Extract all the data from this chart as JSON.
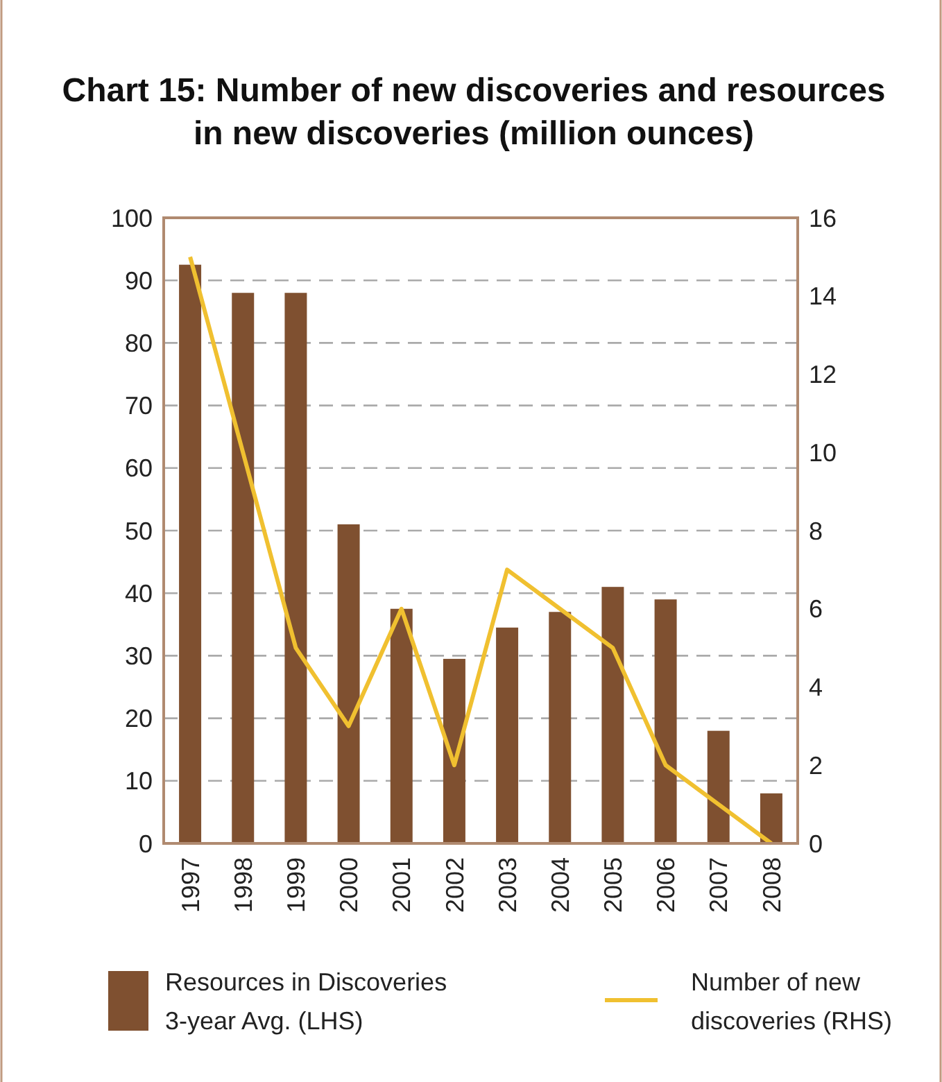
{
  "chart_data": {
    "type": "bar",
    "title": "Chart 15: Number of new discoveries and resources in new discoveries (million ounces)",
    "categories": [
      "1997",
      "1998",
      "1999",
      "2000",
      "2001",
      "2002",
      "2003",
      "2004",
      "2005",
      "2006",
      "2007",
      "2008"
    ],
    "series": [
      {
        "name": "Resources in Discoveries 3-year Avg. (LHS)",
        "color": "#7f5030",
        "values": [
          92.5,
          88,
          88,
          51,
          37.5,
          29.5,
          34.5,
          37,
          41,
          39,
          18,
          8
        ]
      },
      {
        "name": "Number of new discoveries (RHS)",
        "type": "line",
        "axis": "y2",
        "color": "#f0c030",
        "values": [
          15,
          10,
          5,
          3,
          6,
          2,
          7,
          6,
          5,
          2,
          1,
          0
        ]
      }
    ],
    "ylim": [
      0,
      100
    ],
    "yticks": [
      0,
      10,
      20,
      30,
      40,
      50,
      60,
      70,
      80,
      90,
      100
    ],
    "y2lim": [
      0,
      16
    ],
    "y2ticks": [
      0,
      2,
      4,
      6,
      8,
      10,
      12,
      14,
      16
    ],
    "grid": "y",
    "legend": "bottom",
    "marker": "none",
    "line_style": "solid"
  }
}
